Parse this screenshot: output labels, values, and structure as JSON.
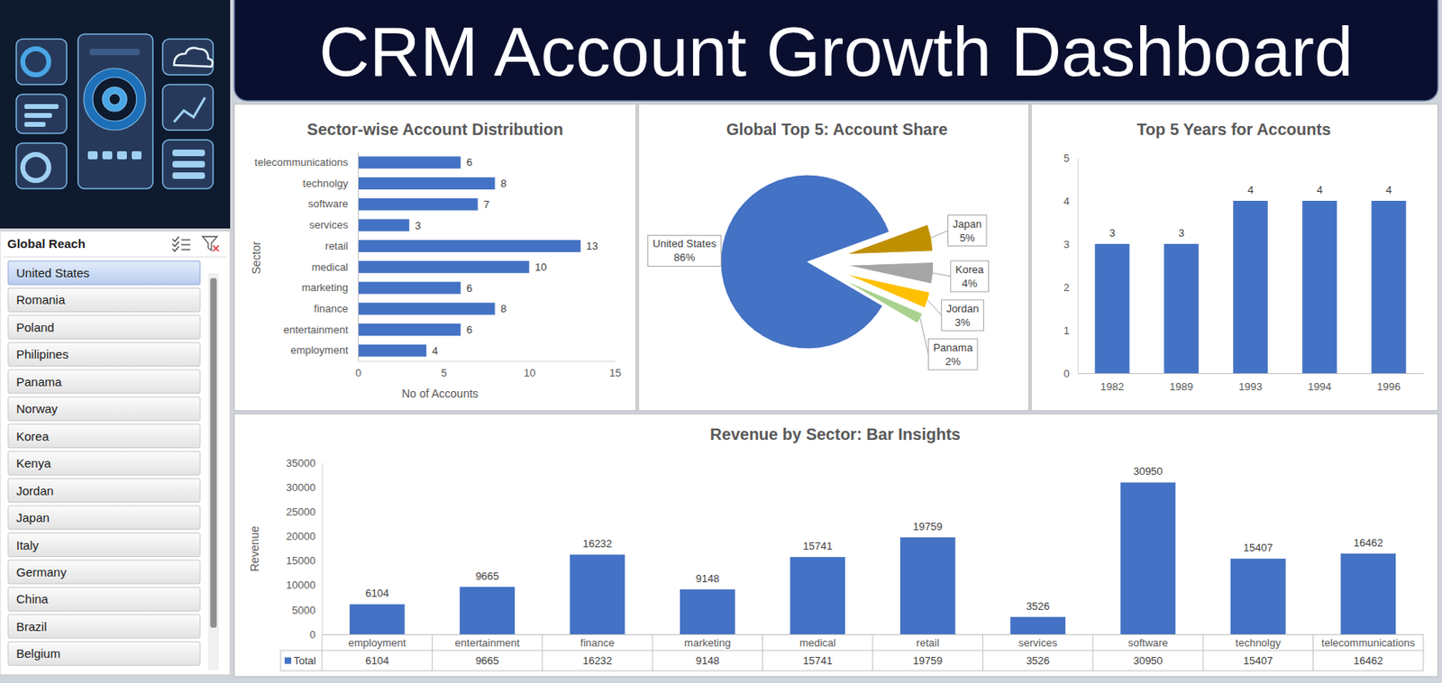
{
  "title": "CRM Account Growth Dashboard",
  "slicer": {
    "title": "Global Reach",
    "items": [
      "United States",
      "Romania",
      "Poland",
      "Philipines",
      "Panama",
      "Norway",
      "Korea",
      "Kenya",
      "Jordan",
      "Japan",
      "Italy",
      "Germany",
      "China",
      "Brazil",
      "Belgium"
    ],
    "selected": [
      "United States"
    ]
  },
  "chart_data": [
    {
      "type": "bar",
      "title": "Sector-wise Account Distribution",
      "orientation": "horizontal",
      "categories": [
        "employment",
        "entertainment",
        "finance",
        "marketing",
        "medical",
        "retail",
        "services",
        "software",
        "technolgy",
        "telecommunications"
      ],
      "values": [
        4,
        6,
        8,
        6,
        10,
        13,
        3,
        7,
        8,
        6
      ],
      "color": "#4472c4",
      "x_label": "No of Accounts",
      "y_label": "Sector",
      "xlim": [
        0,
        15
      ],
      "xticks": [
        0,
        5,
        10,
        15
      ],
      "grid": false,
      "data_labels": true
    },
    {
      "type": "pie",
      "title": "Global Top 5: Account Share",
      "categories": [
        "United States",
        "Japan",
        "Korea",
        "Jordan",
        "Panama"
      ],
      "values": [
        86,
        5,
        4,
        3,
        2
      ],
      "value_labels": [
        "86%",
        "5%",
        "4%",
        "3%",
        "2%"
      ],
      "colors": [
        "#4472c4",
        "#bf9000",
        "#a5a5a5",
        "#ffc000",
        "#a9d18e"
      ],
      "data_labels": true
    },
    {
      "type": "bar",
      "title": "Top 5 Years for Accounts",
      "categories": [
        "1982",
        "1989",
        "1993",
        "1994",
        "1996"
      ],
      "values": [
        3,
        3,
        4,
        4,
        4
      ],
      "color": "#4472c4",
      "ylim": [
        0,
        5
      ],
      "yticks": [
        0,
        1,
        2,
        3,
        4,
        5
      ],
      "grid": false,
      "data_labels": true
    },
    {
      "type": "bar",
      "title": "Revenue by Sector: Bar Insights",
      "categories": [
        "employment",
        "entertainment",
        "finance",
        "marketing",
        "medical",
        "retail",
        "services",
        "software",
        "technolgy",
        "telecommunications"
      ],
      "series": [
        {
          "name": "Total",
          "color": "#4472c4",
          "values": [
            6104,
            9665,
            16232,
            9148,
            15741,
            19759,
            3526,
            30950,
            15407,
            16462
          ]
        }
      ],
      "y_label": "Revenue",
      "ylim": [
        0,
        35000
      ],
      "yticks": [
        0,
        5000,
        10000,
        15000,
        20000,
        25000,
        30000,
        35000
      ],
      "grid": false,
      "data_labels": true
    }
  ]
}
